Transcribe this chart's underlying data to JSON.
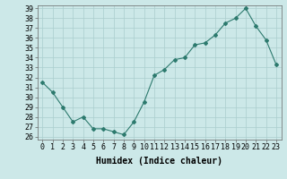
{
  "x": [
    0,
    1,
    2,
    3,
    4,
    5,
    6,
    7,
    8,
    9,
    10,
    11,
    12,
    13,
    14,
    15,
    16,
    17,
    18,
    19,
    20,
    21,
    22,
    23
  ],
  "y": [
    31.5,
    30.5,
    29.0,
    27.5,
    28.0,
    26.8,
    26.8,
    26.5,
    26.2,
    27.5,
    29.5,
    32.2,
    32.8,
    33.8,
    34.0,
    35.3,
    35.5,
    36.3,
    37.5,
    38.0,
    39.0,
    37.2,
    35.8,
    33.3
  ],
  "line_color": "#2d7a6e",
  "marker": "D",
  "marker_size": 2,
  "bg_color": "#cce8e8",
  "grid_color": "#aacece",
  "xlabel": "Humidex (Indice chaleur)",
  "ylim_min": 25.7,
  "ylim_max": 39.3,
  "xlim_min": -0.5,
  "xlim_max": 23.5,
  "yticks": [
    26,
    27,
    28,
    29,
    30,
    31,
    32,
    33,
    34,
    35,
    36,
    37,
    38,
    39
  ],
  "xticks": [
    0,
    1,
    2,
    3,
    4,
    5,
    6,
    7,
    8,
    9,
    10,
    11,
    12,
    13,
    14,
    15,
    16,
    17,
    18,
    19,
    20,
    21,
    22,
    23
  ],
  "font_size_label": 7,
  "font_size_tick": 6
}
